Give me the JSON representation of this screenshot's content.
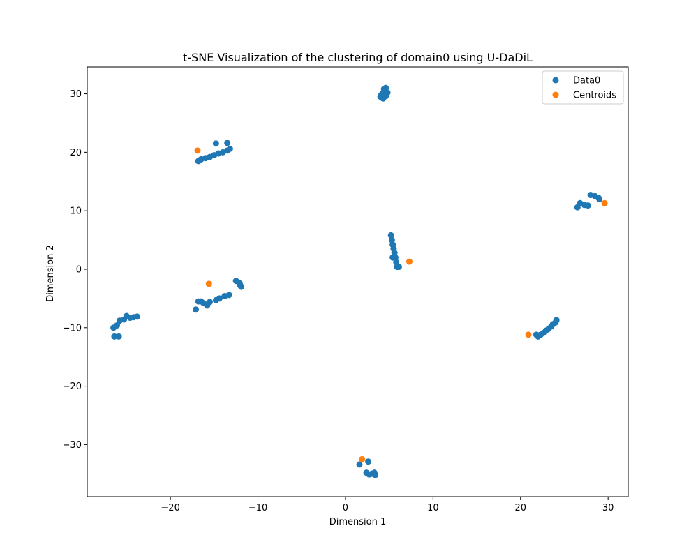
{
  "chart_data": {
    "type": "scatter",
    "title": "t-SNE Visualization of the clustering of domain0 using U-DaDiL",
    "xlabel": "Dimension 1",
    "ylabel": "Dimension 2",
    "xlim": [
      -29.5,
      32.3
    ],
    "ylim": [
      -38.9,
      34.6
    ],
    "xticks": [
      -20,
      -10,
      0,
      10,
      20,
      30
    ],
    "yticks": [
      -30,
      -20,
      -10,
      0,
      10,
      20,
      30
    ],
    "xtick_labels": [
      "−20",
      "−10",
      "0",
      "10",
      "20",
      "30"
    ],
    "ytick_labels": [
      "−30",
      "−20",
      "−10",
      "0",
      "10",
      "20",
      "30"
    ],
    "grid": false,
    "legend_position": "top-right",
    "series": [
      {
        "name": "Data0",
        "color": "#1f77b4",
        "points": [
          [
            4.0,
            29.5
          ],
          [
            4.2,
            30.0
          ],
          [
            4.5,
            30.5
          ],
          [
            4.6,
            31.0
          ],
          [
            4.3,
            29.2
          ],
          [
            4.8,
            30.2
          ],
          [
            4.1,
            29.8
          ],
          [
            4.6,
            29.6
          ],
          [
            4.4,
            30.8
          ],
          [
            -16.8,
            18.5
          ],
          [
            -16.5,
            18.8
          ],
          [
            -16.0,
            19.0
          ],
          [
            -15.5,
            19.2
          ],
          [
            -15.0,
            19.5
          ],
          [
            -14.5,
            19.8
          ],
          [
            -14.0,
            20.0
          ],
          [
            -13.5,
            20.3
          ],
          [
            -13.2,
            20.6
          ],
          [
            -14.8,
            21.5
          ],
          [
            -13.5,
            21.6
          ],
          [
            26.5,
            10.6
          ],
          [
            26.8,
            11.3
          ],
          [
            27.3,
            11.0
          ],
          [
            27.7,
            10.9
          ],
          [
            28.0,
            12.7
          ],
          [
            28.5,
            12.5
          ],
          [
            28.9,
            12.2
          ],
          [
            29.0,
            12.0
          ],
          [
            5.2,
            5.8
          ],
          [
            5.3,
            5.0
          ],
          [
            5.4,
            4.2
          ],
          [
            5.5,
            3.5
          ],
          [
            5.6,
            2.8
          ],
          [
            5.7,
            2.0
          ],
          [
            5.4,
            2.0
          ],
          [
            5.8,
            1.2
          ],
          [
            5.9,
            0.4
          ],
          [
            6.1,
            0.4
          ],
          [
            -17.1,
            -6.9
          ],
          [
            -16.8,
            -5.5
          ],
          [
            -16.5,
            -5.5
          ],
          [
            -16.2,
            -5.8
          ],
          [
            -15.8,
            -6.2
          ],
          [
            -15.5,
            -5.6
          ],
          [
            -14.8,
            -5.3
          ],
          [
            -14.4,
            -5.0
          ],
          [
            -13.8,
            -4.6
          ],
          [
            -13.3,
            -4.4
          ],
          [
            -12.5,
            -2.0
          ],
          [
            -12.1,
            -2.4
          ],
          [
            -12.0,
            -2.8
          ],
          [
            -11.9,
            -3.0
          ],
          [
            -26.5,
            -10.0
          ],
          [
            -26.1,
            -9.6
          ],
          [
            -25.8,
            -8.8
          ],
          [
            -25.3,
            -8.6
          ],
          [
            -25.0,
            -8.0
          ],
          [
            -24.6,
            -8.3
          ],
          [
            -24.2,
            -8.2
          ],
          [
            -23.8,
            -8.1
          ],
          [
            -26.4,
            -11.5
          ],
          [
            -25.9,
            -11.5
          ],
          [
            21.8,
            -11.2
          ],
          [
            22.0,
            -11.5
          ],
          [
            22.3,
            -11.2
          ],
          [
            22.6,
            -10.9
          ],
          [
            22.9,
            -10.5
          ],
          [
            23.2,
            -10.2
          ],
          [
            23.5,
            -9.8
          ],
          [
            23.7,
            -9.4
          ],
          [
            24.0,
            -9.1
          ],
          [
            24.1,
            -8.7
          ],
          [
            1.6,
            -33.4
          ],
          [
            2.6,
            -32.9
          ],
          [
            2.4,
            -34.8
          ],
          [
            2.7,
            -35.1
          ],
          [
            3.0,
            -35.0
          ],
          [
            3.3,
            -34.8
          ],
          [
            3.4,
            -35.2
          ]
        ]
      },
      {
        "name": "Centroids",
        "color": "#ff7f0e",
        "points": [
          [
            -16.9,
            20.3
          ],
          [
            29.6,
            11.3
          ],
          [
            7.3,
            1.3
          ],
          [
            -15.6,
            -2.5
          ],
          [
            20.9,
            -11.2
          ],
          [
            1.9,
            -32.5
          ]
        ]
      }
    ]
  }
}
